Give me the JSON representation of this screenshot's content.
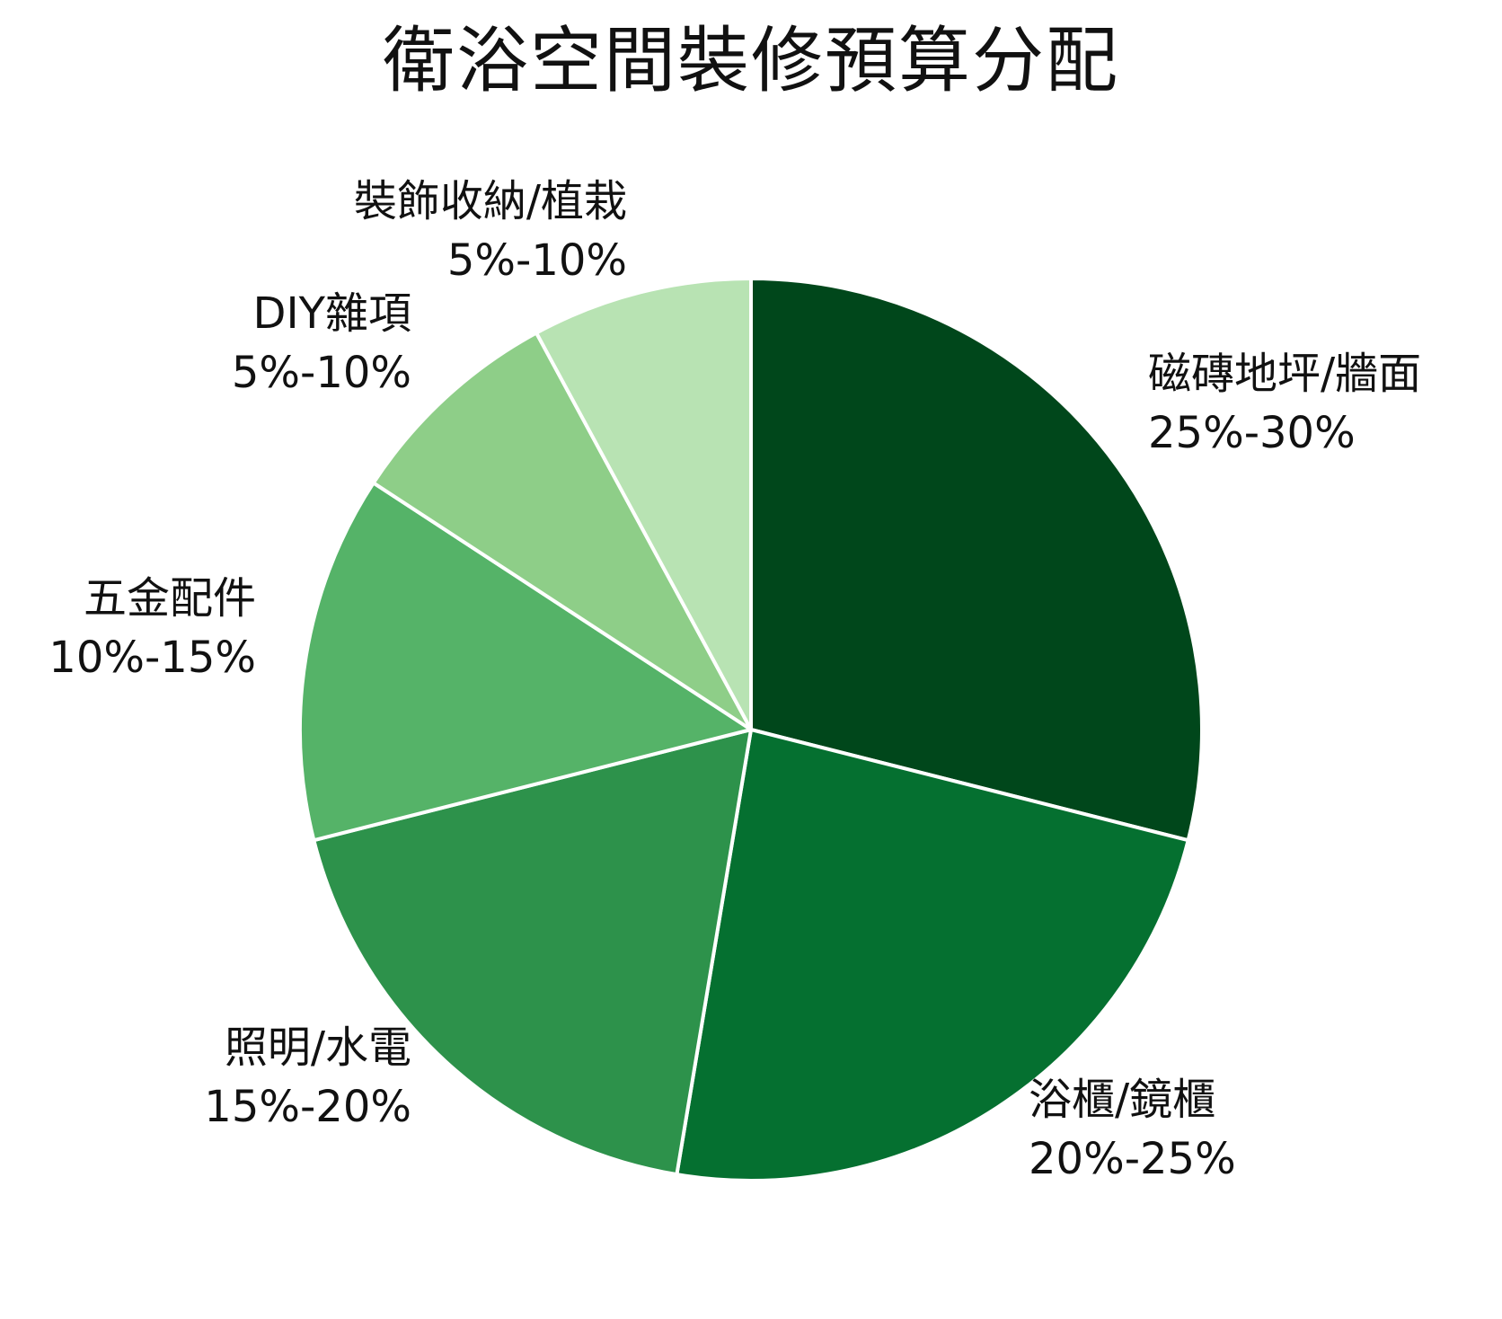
{
  "chart_data": {
    "type": "pie",
    "title": "衛浴空間裝修預算分配",
    "start_angle_deg": 0,
    "direction": "clockwise",
    "slices": [
      {
        "label": "磁磚地坪/牆面",
        "range_text": "25%-30%",
        "value": 27.5,
        "color": "#00471b"
      },
      {
        "label": "浴櫃/鏡櫃",
        "range_text": "20%-25%",
        "value": 22.5,
        "color": "#057030"
      },
      {
        "label": "照明/水電",
        "range_text": "15%-20%",
        "value": 17.5,
        "color": "#2d924b"
      },
      {
        "label": "五金配件",
        "range_text": "10%-15%",
        "value": 12.5,
        "color": "#55b368"
      },
      {
        "label": "DIY雜項",
        "range_text": "5%-10%",
        "value": 7.5,
        "color": "#8ece88"
      },
      {
        "label": "裝飾收納/植栽",
        "range_text": "5%-10%",
        "value": 7.5,
        "color": "#b8e3b3"
      }
    ],
    "slice_border_color": "#ffffff",
    "legend": "none"
  }
}
